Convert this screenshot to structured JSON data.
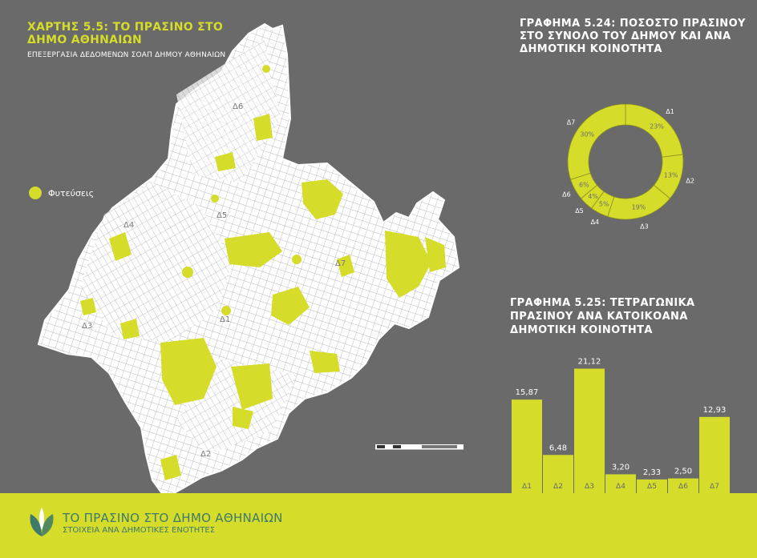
{
  "map": {
    "title": "ΧΑΡΤΗΣ 5.5: ΤΟ ΠΡΑΣΙΝΟ ΣΤΟ ΔΗΜΟ ΑΘΗΝΑΙΩΝ",
    "subtitle": "ΕΠΕΞΕΡΓΑΣΙΑ ΔΕΔΟΜΕΝΩΝ ΣΟΑΠ ΔΗΜΟΥ ΑΘΗΝΑΙΩΝ",
    "legend_label": "Φυτεύσεις",
    "district_labels": [
      "Δ1",
      "Δ2",
      "Δ3",
      "Δ4",
      "Δ5",
      "Δ6",
      "Δ7"
    ]
  },
  "colors": {
    "accent": "#d5dc2a",
    "background": "#6a6a6a",
    "map_fill": "#ffffff",
    "footer_text": "#3d7a6a"
  },
  "footer": {
    "title": "ΤΟ ΠΡΑΣΙΝΟ ΣΤΟ ΔΗΜΟ ΑΘΗΝΑΙΩΝ",
    "subtitle": "ΣΤΟΙΧΕΙΑ ΑΝΑ ΔΗΜΟΤΙΚΕΣ ΕΝΟΤΗΤΕΣ",
    "icon": "leaf-icon"
  },
  "chart_data": [
    {
      "type": "pie",
      "title": "ΓΡΑΦΗΜΑ 5.24: ΠΟΣΟΣΤΟ ΠΡΑΣΙΝΟΥ ΣΤΟ ΣΥΝΟΛΟ ΤΟΥ ΔΗΜΟΥ ΚΑΙ ΑΝΑ ΔΗΜΟΤΙΚΗ ΚΟΙΝΟΤΗΤΑ",
      "donut": true,
      "categories": [
        "Δ1",
        "Δ2",
        "Δ3",
        "Δ4",
        "Δ5",
        "Δ6",
        "Δ7"
      ],
      "values": [
        23,
        13,
        19,
        5,
        4,
        6,
        30
      ],
      "value_labels": [
        "23%",
        "13%",
        "19%",
        "5%",
        "4%",
        "6%",
        "30%"
      ]
    },
    {
      "type": "bar",
      "title": "ΓΡΑΦΗΜΑ 5.25: ΤΕΤΡΑΓΩΝΙΚΑ ΠΡΑΣΙΝΟΥ ΑΝΑ ΚΑΤΟΙΚΟΑΝΑ ΔΗΜΟΤΙΚΗ ΚΟΙΝΟΤΗΤΑ",
      "categories": [
        "Δ1",
        "Δ2",
        "Δ3",
        "Δ4",
        "Δ5",
        "Δ6",
        "Δ7"
      ],
      "values": [
        15.87,
        6.48,
        21.12,
        3.2,
        2.33,
        2.5,
        12.93
      ],
      "value_labels": [
        "15,87",
        "6,48",
        "21,12",
        "3,20",
        "2,33",
        "2,50",
        "12,93"
      ],
      "ylim": [
        0,
        22
      ]
    }
  ]
}
